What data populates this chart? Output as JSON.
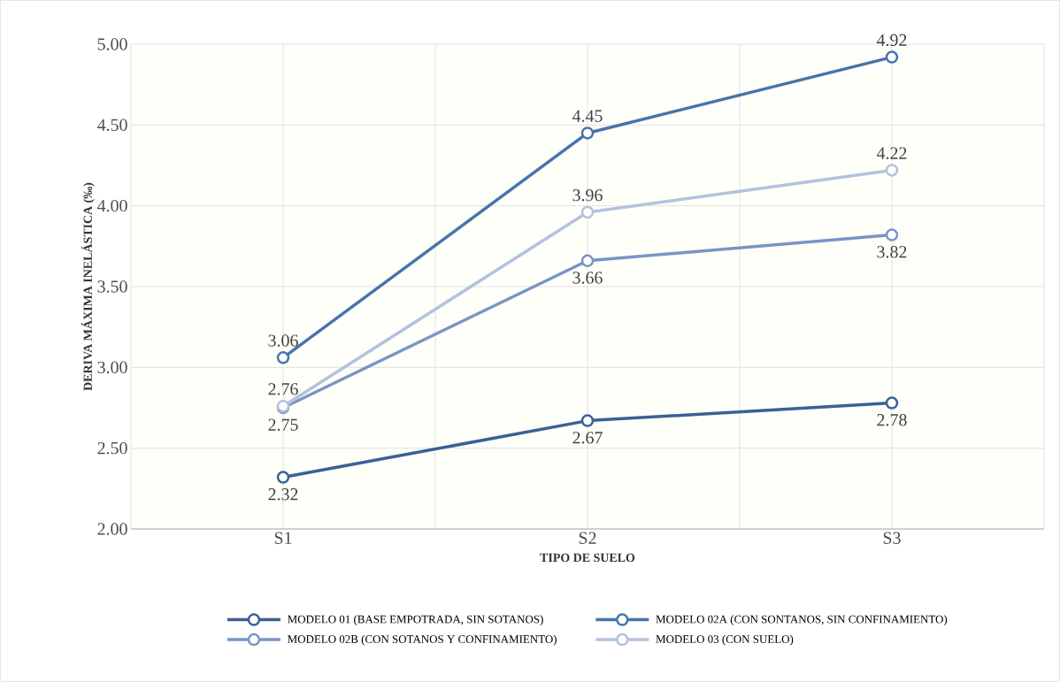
{
  "chart_data": {
    "type": "line",
    "xlabel": "TIPO DE SUELO",
    "ylabel": "DERIVA MÁXIMA INELÁSTICA (‰)",
    "categories": [
      "S1",
      "S2",
      "S3"
    ],
    "series": [
      {
        "name": "MODELO 01 (BASE EMPOTRADA, SIN SOTANOS)",
        "color": "#3a6194",
        "values": [
          2.32,
          2.67,
          2.78
        ]
      },
      {
        "name": "MODELO 02A (CON SONTANOS, SIN CONFINAMIENTO)",
        "color": "#4674ad",
        "values": [
          3.06,
          4.45,
          4.92
        ]
      },
      {
        "name": "MODELO 02B (CON SOTANOS Y CONFINAMIENTO)",
        "color": "#7895c6",
        "values": [
          2.75,
          3.66,
          3.82
        ]
      },
      {
        "name": "MODELO 03 (CON SUELO)",
        "color": "#b3c2de",
        "values": [
          2.76,
          3.96,
          4.22
        ]
      }
    ],
    "ylim": [
      2,
      5
    ],
    "yticks": [
      {
        "value": 2,
        "label": "2.00"
      },
      {
        "value": 2.5,
        "label": "2.50"
      },
      {
        "value": 3,
        "label": "3.00"
      },
      {
        "value": 3.5,
        "label": "3.50"
      },
      {
        "value": 4,
        "label": "4.00"
      },
      {
        "value": 4.5,
        "label": "4.50"
      },
      {
        "value": 5,
        "label": "5.00"
      }
    ],
    "grid": true,
    "legend": "bottom",
    "marker": "circle",
    "line_style": "solid",
    "data_labels": true
  }
}
